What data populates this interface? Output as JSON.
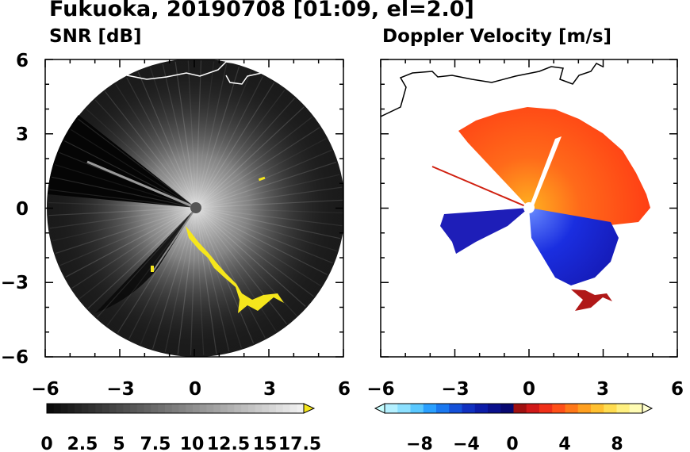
{
  "title": "Fukuoka, 20190708 [01:09, el=2.0]",
  "chart_data": [
    {
      "type": "heatmap",
      "subtitle": "SNR [dB]",
      "xlim": [
        -6,
        6
      ],
      "ylim": [
        -6,
        6
      ],
      "x_ticks": [
        "−6",
        "−3",
        "0",
        "3",
        "6"
      ],
      "y_ticks": [
        "6",
        "3",
        "0",
        "−3",
        "−6"
      ],
      "colorbar": {
        "labels": [
          "0",
          "2.5",
          "5",
          "7.5",
          "10",
          "12.5",
          "15",
          "17.5"
        ],
        "extend": "max",
        "range": [
          0,
          18.5
        ]
      },
      "colors": {
        "low": "#000000",
        "high": "#f2f2f2",
        "over": "#f5e61c",
        "disk": "#1b1b1b",
        "coast": "#ffffff"
      }
    },
    {
      "type": "heatmap",
      "subtitle": "Doppler Velocity [m/s]",
      "xlim": [
        -6,
        6
      ],
      "ylim": [
        -6,
        6
      ],
      "x_ticks": [
        "−6",
        "−3",
        "0",
        "3",
        "6"
      ],
      "y_ticks": [],
      "colorbar": {
        "labels": [
          "−8",
          "−4",
          "0",
          "4",
          "8"
        ],
        "extend": "both",
        "range": [
          -10,
          10
        ]
      },
      "colors": {
        "approaching": "#1a1ad6",
        "receding": "#ff4a1a",
        "far_negative": "#c8ffff",
        "far_positive": "#ffffd0",
        "coast": "#000000"
      }
    }
  ]
}
